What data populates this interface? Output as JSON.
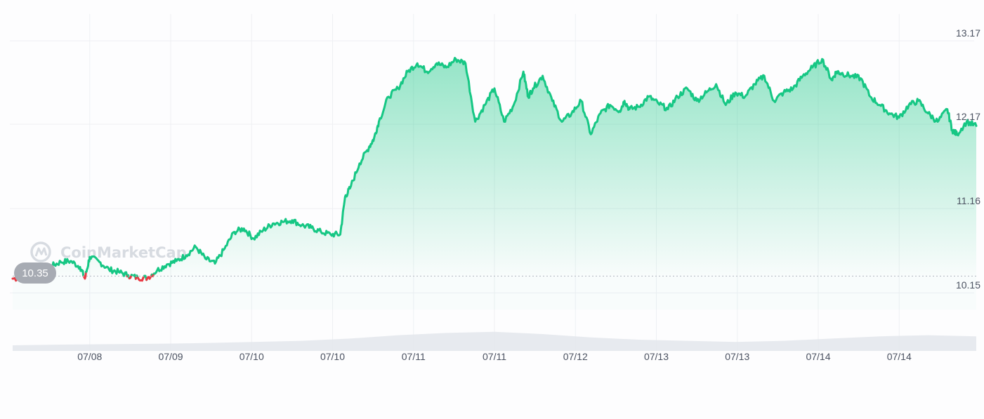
{
  "watermark": {
    "text": "CoinMarketCap",
    "icon": "coinmarketcap-logo-icon"
  },
  "price_badge": {
    "value": "10.35",
    "color": "#a7abb3"
  },
  "colors": {
    "up": "#16c784",
    "down": "#ea3943",
    "fill": "#16c784",
    "grid": "#eef0f3",
    "volume": "#e3e6ec"
  },
  "chart_data": {
    "type": "area",
    "title": "",
    "xlabel": "",
    "ylabel": "",
    "baseline": 10.35,
    "ylim": [
      9.95,
      13.28
    ],
    "y_ticks": [
      10.15,
      11.16,
      12.17,
      13.17
    ],
    "y_tick_labels": [
      "10.15",
      "11.16",
      "12.17",
      "13.17"
    ],
    "x_tick_labels": [
      "07/08",
      "07/09",
      "07/10",
      "07/10",
      "07/11",
      "07/11",
      "07/12",
      "07/13",
      "07/13",
      "07/14",
      "07/14"
    ],
    "x_tick_positions": [
      0.08,
      0.164,
      0.248,
      0.332,
      0.416,
      0.5,
      0.584,
      0.668,
      0.752,
      0.836,
      0.92
    ],
    "grid": true,
    "legend": "none",
    "series": [
      {
        "x": [
          0,
          0.01,
          0.02,
          0.03,
          0.04,
          0.05,
          0.06,
          0.07,
          0.075,
          0.08,
          0.09,
          0.1,
          0.11,
          0.12,
          0.13,
          0.14,
          0.15,
          0.16,
          0.17,
          0.18,
          0.19,
          0.2,
          0.21,
          0.22,
          0.23,
          0.24,
          0.25,
          0.26,
          0.27,
          0.28,
          0.29,
          0.3,
          0.31,
          0.32,
          0.33,
          0.34,
          0.345,
          0.35,
          0.36,
          0.37,
          0.375,
          0.38,
          0.39,
          0.4,
          0.41,
          0.42,
          0.43,
          0.44,
          0.45,
          0.46,
          0.47,
          0.48,
          0.49,
          0.5,
          0.51,
          0.52,
          0.53,
          0.535,
          0.54,
          0.55,
          0.56,
          0.57,
          0.58,
          0.59,
          0.6,
          0.61,
          0.62,
          0.63,
          0.635,
          0.64,
          0.65,
          0.66,
          0.67,
          0.68,
          0.69,
          0.7,
          0.71,
          0.72,
          0.73,
          0.74,
          0.75,
          0.76,
          0.77,
          0.78,
          0.79,
          0.8,
          0.81,
          0.82,
          0.83,
          0.84,
          0.85,
          0.855,
          0.86,
          0.87,
          0.88,
          0.89,
          0.9,
          0.91,
          0.92,
          0.93,
          0.94,
          0.95,
          0.96,
          0.97,
          0.975,
          0.98,
          0.99,
          1.0
        ],
        "y": [
          10.32,
          10.33,
          10.36,
          10.41,
          10.47,
          10.52,
          10.53,
          10.46,
          10.32,
          10.58,
          10.52,
          10.43,
          10.4,
          10.36,
          10.33,
          10.33,
          10.42,
          10.49,
          10.53,
          10.6,
          10.7,
          10.56,
          10.5,
          10.68,
          10.88,
          10.92,
          10.8,
          10.9,
          10.98,
          11.0,
          11.02,
          10.96,
          10.93,
          10.88,
          10.85,
          10.85,
          11.3,
          11.4,
          11.7,
          11.9,
          12.0,
          12.2,
          12.5,
          12.6,
          12.8,
          12.9,
          12.8,
          12.9,
          12.85,
          12.95,
          12.9,
          12.2,
          12.4,
          12.6,
          12.2,
          12.4,
          12.8,
          12.5,
          12.6,
          12.75,
          12.45,
          12.2,
          12.3,
          12.45,
          12.05,
          12.3,
          12.4,
          12.33,
          12.45,
          12.35,
          12.38,
          12.5,
          12.42,
          12.35,
          12.5,
          12.6,
          12.45,
          12.55,
          12.65,
          12.4,
          12.55,
          12.5,
          12.65,
          12.75,
          12.45,
          12.55,
          12.6,
          12.75,
          12.85,
          12.95,
          12.7,
          12.8,
          12.78,
          12.75,
          12.72,
          12.5,
          12.4,
          12.3,
          12.25,
          12.4,
          12.45,
          12.3,
          12.2,
          12.35,
          12.1,
          12.05,
          12.2,
          12.15
        ]
      }
    ],
    "volume": {
      "x": [
        0,
        0.05,
        0.1,
        0.15,
        0.2,
        0.25,
        0.3,
        0.35,
        0.4,
        0.45,
        0.5,
        0.55,
        0.6,
        0.65,
        0.7,
        0.75,
        0.8,
        0.85,
        0.9,
        0.95,
        1.0
      ],
      "values": [
        0.25,
        0.28,
        0.3,
        0.32,
        0.35,
        0.4,
        0.45,
        0.55,
        0.7,
        0.8,
        0.85,
        0.75,
        0.6,
        0.5,
        0.45,
        0.4,
        0.45,
        0.55,
        0.65,
        0.7,
        0.65
      ]
    }
  }
}
